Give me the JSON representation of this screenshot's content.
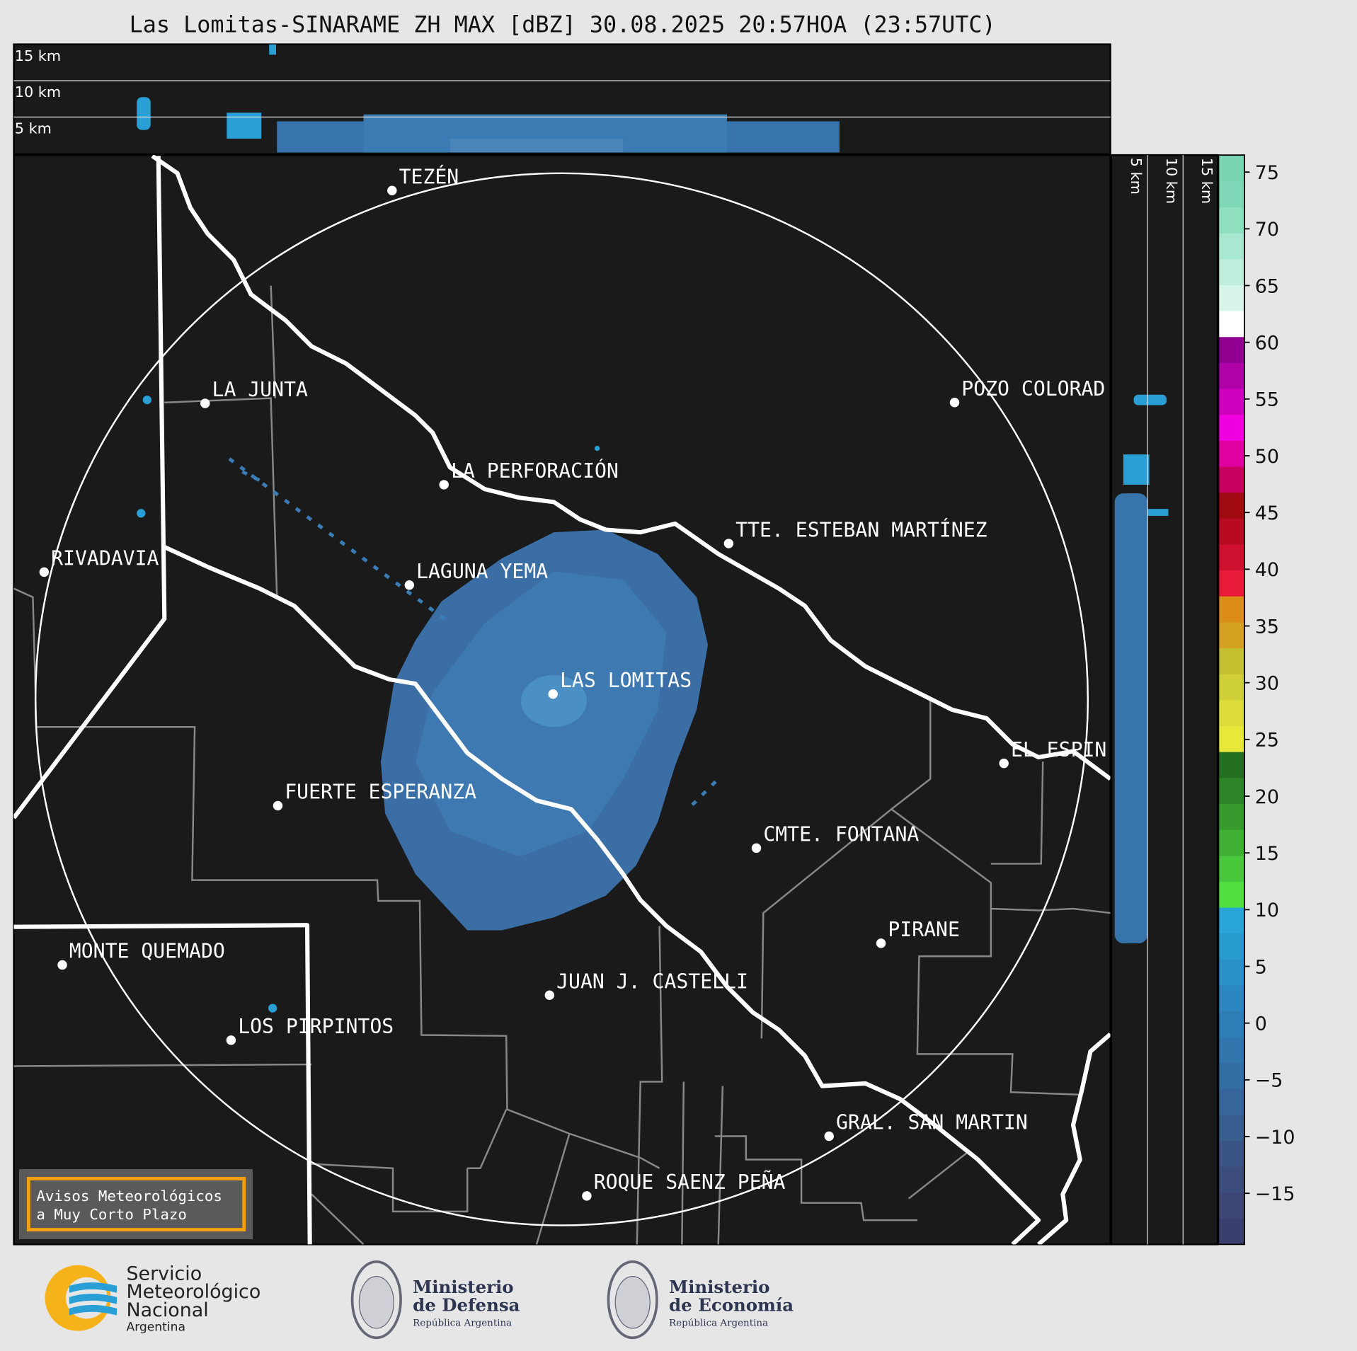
{
  "header": {
    "title": "Las Lomitas-SINARAME ZH MAX [dBZ] 30.08.2025 20:57HOA (23:57UTC)"
  },
  "height_panel": {
    "labels": [
      "15 km",
      "10 km",
      "5 km"
    ]
  },
  "side_panel": {
    "labels": [
      "5 km",
      "10 km",
      "15 km"
    ]
  },
  "map": {
    "cities": [
      "TEZÉN",
      "LA JUNTA",
      "POZO COLORAD",
      "LA PERFORACIÓN",
      "TTE. ESTEBAN MARTÍNEZ",
      "RIVADAVIA",
      "LAGUNA YEMA",
      "LAS LOMITAS",
      "EL ESPIN",
      "FUERTE ESPERANZA",
      "CMTE. FONTANA",
      "PIRANE",
      "MONTE QUEMADO",
      "JUAN J. CASTELLI",
      "LOS PIRPINTOS",
      "GRAL. SAN MARTIN",
      "ROQUE SAENZ PEÑA"
    ]
  },
  "colorbar": {
    "lim": [
      -19.5,
      76.5
    ],
    "ticks": [
      {
        "value": -15,
        "label": "−15"
      },
      {
        "value": -10,
        "label": "−10"
      },
      {
        "value": -5,
        "label": "−5"
      },
      0,
      5,
      10,
      15,
      20,
      25,
      30,
      35,
      40,
      45,
      50,
      55,
      60,
      65,
      70,
      75
    ],
    "colors": [
      "#3b3f6e",
      "#3d4674",
      "#3c4d7c",
      "#3a5585",
      "#385d8f",
      "#366599",
      "#346da2",
      "#3275ac",
      "#2f7db5",
      "#2c86bf",
      "#2990c8",
      "#279ad0",
      "#29a6d9",
      "#4fe040",
      "#48c83a",
      "#40b034",
      "#389a2e",
      "#2f8428",
      "#256f22",
      "#e8e83a",
      "#dcdc3a",
      "#cfcf38",
      "#c4c030",
      "#d4a020",
      "#dc8c18",
      "#e81a3a",
      "#d01030",
      "#b80a20",
      "#a00a10",
      "#c80060",
      "#e000a0",
      "#f000e0",
      "#d000c0",
      "#b000a8",
      "#900090",
      "#ffffff",
      "#d8f5ea",
      "#c0eedc",
      "#a8e8d0",
      "#90e0c0",
      "#80d8b8",
      "#7ad4b2"
    ]
  },
  "notice": {
    "lines": [
      "Avisos Meteorológicos",
      "a Muy Corto Plazo"
    ]
  },
  "footer": {
    "smn": [
      "Servicio",
      "Meteorológico",
      "Nacional",
      "Argentina"
    ],
    "defensa": [
      "Ministerio",
      "de Defensa",
      "República Argentina"
    ],
    "economia": [
      "Ministerio",
      "de Economía",
      "República Argentina"
    ]
  }
}
